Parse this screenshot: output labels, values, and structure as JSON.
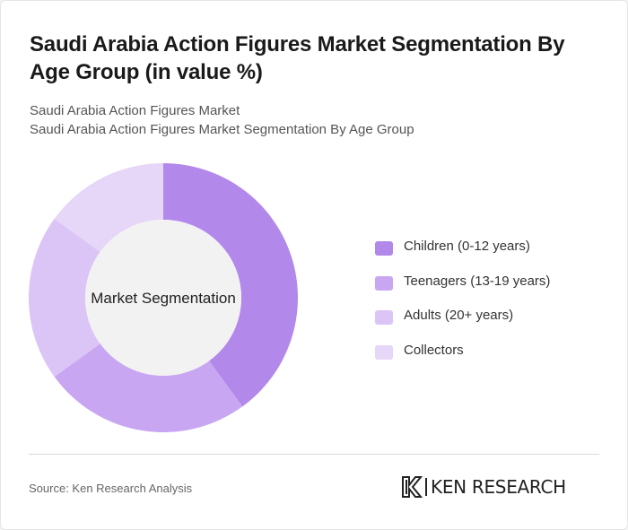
{
  "header": {
    "title": "Saudi Arabia Action Figures Market Segmentation By Age Group (in value %)",
    "subtitle_1": "Saudi Arabia Action Figures Market",
    "subtitle_2": "Saudi Arabia Action Figures Market Segmentation By Age Group"
  },
  "chart_data": {
    "type": "pie",
    "variant": "donut",
    "center_label": "Market Segmentation",
    "categories": [
      "Children (0-12 years)",
      "Teenagers (13-19 years)",
      "Adults (20+ years)",
      "Collectors"
    ],
    "values": [
      40,
      25,
      20,
      15
    ],
    "unit": "%",
    "start": "12 o'clock",
    "direction": "clockwise",
    "colors": [
      "#b388eb",
      "#c9a6f2",
      "#dbc5f7",
      "#e6d6f8"
    ],
    "legend_position": "right"
  },
  "footer": {
    "source": "Source: Ken Research Analysis",
    "logo_text": "KEN RESEARCH",
    "logo_mark": "K"
  },
  "colors": {
    "hole": "#f2f2f2",
    "title": "#1a1a1a",
    "subtitle": "#555555"
  }
}
